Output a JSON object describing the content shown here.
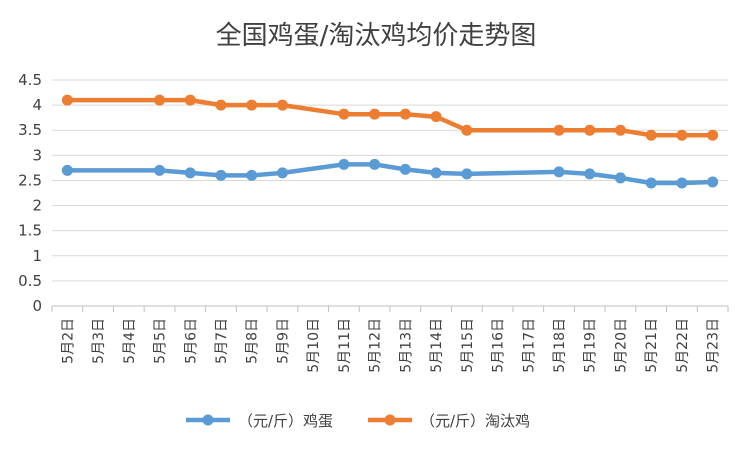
{
  "chart_data": {
    "type": "line",
    "title": "全国鸡蛋/淘汰鸡均价走势图",
    "xlabel": "",
    "ylabel": "",
    "ylim": [
      0,
      4.5
    ],
    "yticks": [
      "0",
      "0.5",
      "1",
      "1.5",
      "2",
      "2.5",
      "3",
      "3.5",
      "4",
      "4.5"
    ],
    "categories": [
      "5月2日",
      "5月3日",
      "5月4日",
      "5月5日",
      "5月6日",
      "5月7日",
      "5月8日",
      "5月9日",
      "5月10日",
      "5月11日",
      "5月12日",
      "5月13日",
      "5月14日",
      "5月15日",
      "5月16日",
      "5月17日",
      "5月18日",
      "5月19日",
      "5月20日",
      "5月21日",
      "5月22日",
      "5月23日"
    ],
    "series": [
      {
        "name": "（元/斤）鸡蛋",
        "color": "#5B9BD5",
        "values": [
          2.7,
          null,
          null,
          2.7,
          2.65,
          2.6,
          2.6,
          2.65,
          null,
          2.82,
          2.82,
          2.72,
          2.65,
          2.63,
          null,
          null,
          2.67,
          2.63,
          2.55,
          2.45,
          2.45,
          2.47
        ]
      },
      {
        "name": "（元/斤）淘汰鸡",
        "color": "#ED7D31",
        "values": [
          4.1,
          null,
          null,
          4.1,
          4.1,
          4.0,
          4.0,
          4.0,
          null,
          3.82,
          3.82,
          3.82,
          3.77,
          3.5,
          null,
          null,
          3.5,
          3.5,
          3.5,
          3.4,
          3.4,
          3.4
        ]
      }
    ],
    "grid": "horizontal",
    "legend_position": "bottom"
  }
}
